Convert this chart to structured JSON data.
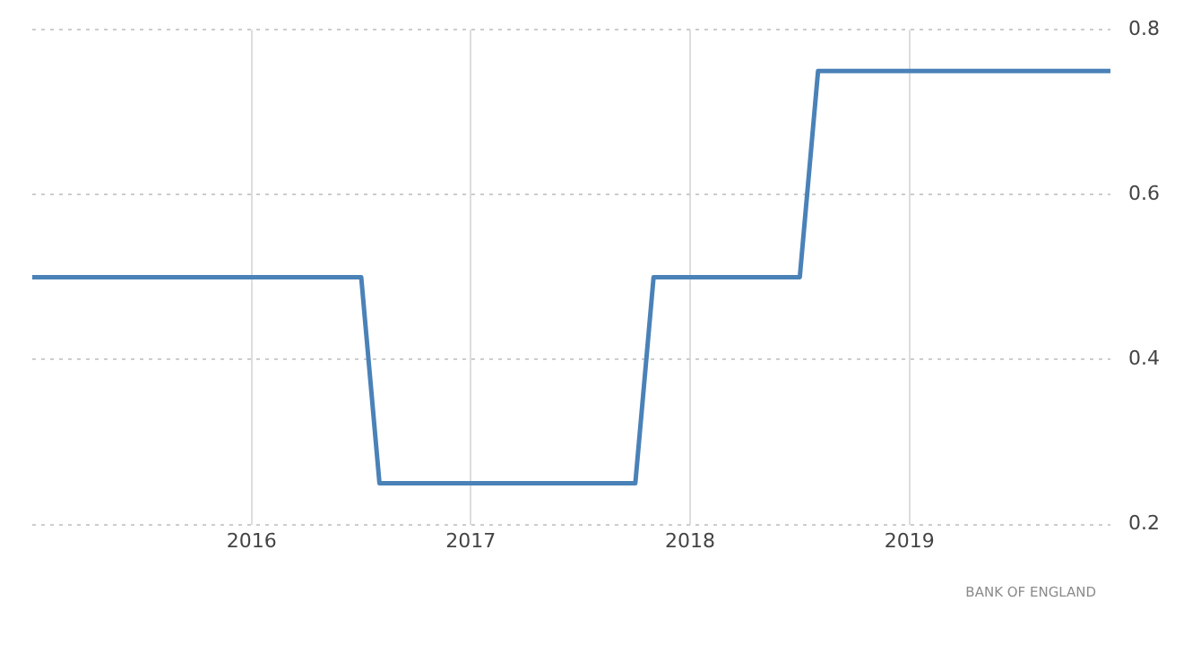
{
  "chart_data": {
    "type": "line",
    "x": [
      "2015-01",
      "2016-07",
      "2016-08",
      "2017-10",
      "2017-11",
      "2018-07",
      "2018-08",
      "2019-12"
    ],
    "series": [
      {
        "color": "#4a82b8",
        "values": [
          0.5,
          0.5,
          0.25,
          0.25,
          0.5,
          0.5,
          0.75,
          0.75
        ]
      }
    ],
    "xlim": [
      "2015-01",
      "2019-12"
    ],
    "xticks": [
      "2016",
      "2017",
      "2018",
      "2019"
    ],
    "ylim": [
      0.2,
      0.8
    ],
    "yticks": [
      {
        "value": 0.2,
        "label": "0.2"
      },
      {
        "value": 0.4,
        "label": "0.4"
      },
      {
        "value": 0.6,
        "label": "0.6"
      },
      {
        "value": 0.8,
        "label": "0.8"
      }
    ],
    "grid": true,
    "legend": false,
    "marker": "none",
    "line_style": "solid",
    "annotations": [
      "BANK OF ENGLAND"
    ]
  }
}
